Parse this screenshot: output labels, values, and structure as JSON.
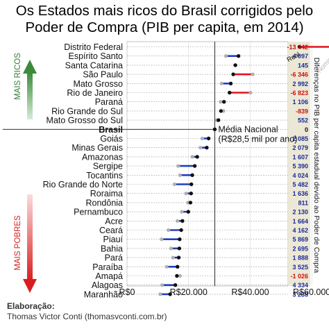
{
  "chart_data": {
    "type": "dumbbell",
    "title": "Os Estados mais ricos do Brasil corrigidos pelo Poder de Compra (PIB per capita, em 2014)",
    "x_ticks": [
      "R$0",
      "R$20.000",
      "R$40.000",
      "R$60.000"
    ],
    "xlim": [
      0,
      70000
    ],
    "legend": {
      "real": "Real",
      "nominal": "Nominal"
    },
    "left_label_top": "MAIS RICOS",
    "left_label_bottom": "MAIS POBRES",
    "right_axis_label": "Diferenças no PIB per capita estadual devido ao Poder de Compra",
    "reference": {
      "label_line1": "Média Nacional",
      "label_line2": "(R$28,5 mil por ano)",
      "value": 28500
    },
    "colors": {
      "gain": "#1f3fbf",
      "loss": "#e0141e",
      "nominal": "#b0b0b0",
      "real": "#111111"
    },
    "rows": [
      {
        "label": "Distrito Federal",
        "real": 56000,
        "nominal": 69442,
        "diff": "-13 442",
        "sign": "neg"
      },
      {
        "label": "Espírito Santo",
        "real": 36200,
        "nominal": 32103,
        "diff": "4 097",
        "sign": "pos"
      },
      {
        "label": "Santa Catarina",
        "real": 35200,
        "nominal": 35055,
        "diff": "145",
        "sign": "pos"
      },
      {
        "label": "São Paulo",
        "real": 34500,
        "nominal": 40846,
        "diff": "-6 346",
        "sign": "neg"
      },
      {
        "label": "Mato Grosso",
        "real": 33700,
        "nominal": 30708,
        "diff": "2 992",
        "sign": "pos"
      },
      {
        "label": "Rio de Janeiro",
        "real": 33300,
        "nominal": 40123,
        "diff": "-6 823",
        "sign": "neg"
      },
      {
        "label": "Paraná",
        "real": 31500,
        "nominal": 30394,
        "diff": "1 106",
        "sign": "pos"
      },
      {
        "label": "Rio Grande do Sul",
        "real": 30500,
        "nominal": 31339,
        "diff": "-839",
        "sign": "neg"
      },
      {
        "label": "Mato Grosso do Sul",
        "real": 29700,
        "nominal": 29148,
        "diff": "552",
        "sign": "pos"
      },
      {
        "label": "Brasil",
        "real": 28500,
        "nominal": 28500,
        "diff": "0",
        "sign": "zero",
        "bold": true
      },
      {
        "label": "Goiás",
        "real": 26500,
        "nominal": 24415,
        "diff": "2 085",
        "sign": "pos"
      },
      {
        "label": "Minas Gerais",
        "real": 25900,
        "nominal": 23821,
        "diff": "2 079",
        "sign": "pos"
      },
      {
        "label": "Amazonas",
        "real": 22800,
        "nominal": 21193,
        "diff": "1 607",
        "sign": "pos"
      },
      {
        "label": "Sergipe",
        "real": 22000,
        "nominal": 16610,
        "diff": "5 390",
        "sign": "pos"
      },
      {
        "label": "Tocantins",
        "real": 21200,
        "nominal": 17176,
        "diff": "4 024",
        "sign": "pos"
      },
      {
        "label": "Rio Grande do Norte",
        "real": 20900,
        "nominal": 15418,
        "diff": "5 482",
        "sign": "pos"
      },
      {
        "label": "Roraima",
        "real": 20800,
        "nominal": 19164,
        "diff": "1 636",
        "sign": "pos"
      },
      {
        "label": "Rondônia",
        "real": 20600,
        "nominal": 19789,
        "diff": "811",
        "sign": "pos"
      },
      {
        "label": "Pernambuco",
        "real": 19900,
        "nominal": 17770,
        "diff": "2 130",
        "sign": "pos"
      },
      {
        "label": "Acre",
        "real": 18000,
        "nominal": 16336,
        "diff": "1 664",
        "sign": "pos"
      },
      {
        "label": "Ceará",
        "real": 17600,
        "nominal": 13438,
        "diff": "4 162",
        "sign": "pos"
      },
      {
        "label": "Piauí",
        "real": 17100,
        "nominal": 11231,
        "diff": "5 869",
        "sign": "pos"
      },
      {
        "label": "Bahia",
        "real": 17000,
        "nominal": 14305,
        "diff": "2 695",
        "sign": "pos"
      },
      {
        "label": "Pará",
        "real": 16800,
        "nominal": 14912,
        "diff": "1 888",
        "sign": "pos"
      },
      {
        "label": "Paraíba",
        "real": 16400,
        "nominal": 12875,
        "diff": "3 525",
        "sign": "pos"
      },
      {
        "label": "Amapá",
        "real": 16200,
        "nominal": 17226,
        "diff": "-1 026",
        "sign": "neg"
      },
      {
        "label": "Alagoas",
        "real": 15700,
        "nominal": 11366,
        "diff": "4 334",
        "sign": "pos"
      },
      {
        "label": "Maranhão",
        "real": 14000,
        "nominal": 10762,
        "diff": "3 238",
        "sign": "pos"
      }
    ]
  },
  "credit": {
    "line1": "Elaboração:",
    "line2": "Thomas Victor Conti (thomasvconti.com.br)"
  }
}
